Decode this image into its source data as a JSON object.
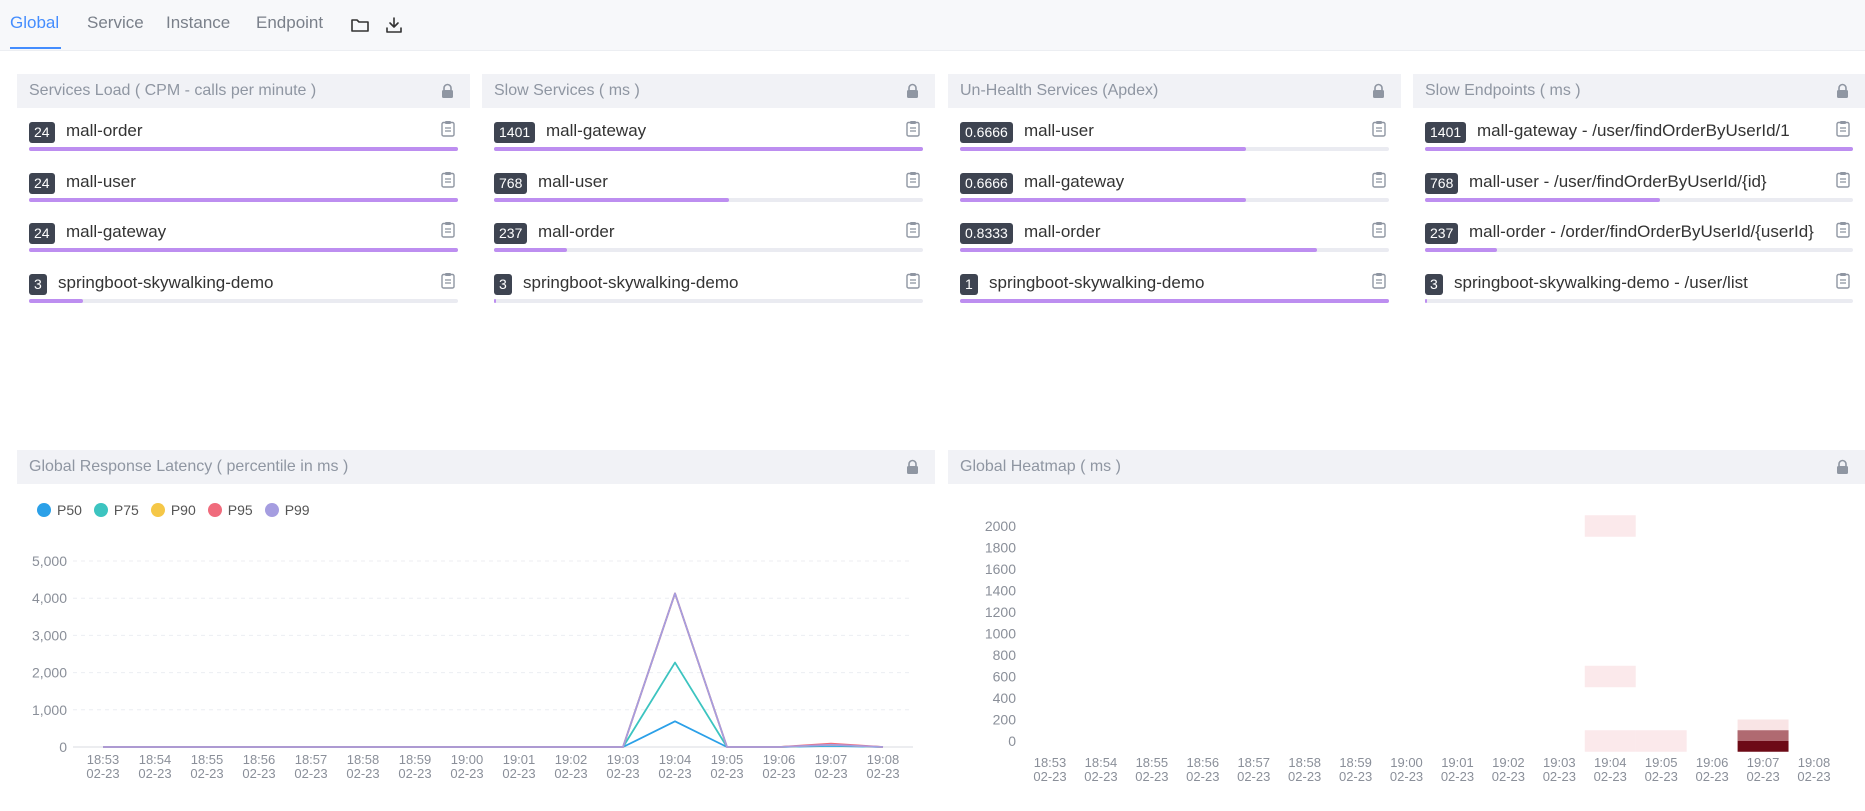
{
  "tabs": [
    {
      "label": "Global",
      "active": true
    },
    {
      "label": "Service",
      "active": false
    },
    {
      "label": "Instance",
      "active": false
    },
    {
      "label": "Endpoint",
      "active": false
    }
  ],
  "toolbar": {
    "import_icon": "folder-icon",
    "export_icon": "download-icon"
  },
  "panels": {
    "services_load": {
      "title": "Services Load ( CPM - calls per minute )",
      "rows": [
        {
          "value": "24",
          "name": "mall-order",
          "pct": 1.0
        },
        {
          "value": "24",
          "name": "mall-user",
          "pct": 1.0
        },
        {
          "value": "24",
          "name": "mall-gateway",
          "pct": 1.0
        },
        {
          "value": "3",
          "name": "springboot-skywalking-demo",
          "pct": 0.125
        }
      ]
    },
    "slow_services": {
      "title": "Slow Services ( ms )",
      "rows": [
        {
          "value": "1401",
          "name": "mall-gateway",
          "pct": 1.0
        },
        {
          "value": "768",
          "name": "mall-user",
          "pct": 0.548
        },
        {
          "value": "237",
          "name": "mall-order",
          "pct": 0.169
        },
        {
          "value": "3",
          "name": "springboot-skywalking-demo",
          "pct": 0.002
        }
      ]
    },
    "unhealth_services": {
      "title": "Un-Health Services (Apdex)",
      "rows": [
        {
          "value": "0.6666",
          "name": "mall-user",
          "pct": 0.6666
        },
        {
          "value": "0.6666",
          "name": "mall-gateway",
          "pct": 0.6666
        },
        {
          "value": "0.8333",
          "name": "mall-order",
          "pct": 0.8333
        },
        {
          "value": "1",
          "name": "springboot-skywalking-demo",
          "pct": 1.0
        }
      ]
    },
    "slow_endpoints": {
      "title": "Slow Endpoints ( ms )",
      "rows": [
        {
          "value": "1401",
          "name": "mall-gateway - /user/findOrderByUserId/1",
          "pct": 1.0
        },
        {
          "value": "768",
          "name": "mall-user - /user/findOrderByUserId/{id}",
          "pct": 0.548
        },
        {
          "value": "237",
          "name": "mall-order - /order/findOrderByUserId/{userId}",
          "pct": 0.169
        },
        {
          "value": "3",
          "name": "springboot-skywalking-demo - /user/list",
          "pct": 0.002
        }
      ]
    },
    "latency": {
      "title": "Global Response Latency ( percentile in ms )"
    },
    "heatmap": {
      "title": "Global Heatmap ( ms )"
    }
  },
  "colors": {
    "accent": "#448dfe",
    "bar": "#bd8ef0",
    "badge": "#3e4451"
  },
  "chart_data": [
    {
      "type": "line",
      "title": "Global Response Latency ( percentile in ms )",
      "categories": [
        "18:53\n02-23",
        "18:54\n02-23",
        "18:55\n02-23",
        "18:56\n02-23",
        "18:57\n02-23",
        "18:58\n02-23",
        "18:59\n02-23",
        "19:00\n02-23",
        "19:01\n02-23",
        "19:02\n02-23",
        "19:03\n02-23",
        "19:04\n02-23",
        "19:05\n02-23",
        "19:06\n02-23",
        "19:07\n02-23",
        "19:08\n02-23"
      ],
      "ylim": [
        0,
        5000
      ],
      "yticks": [
        "0",
        "1,000",
        "2,000",
        "3,000",
        "4,000",
        "5,000"
      ],
      "grid": true,
      "legend_position": "top-left",
      "series": [
        {
          "name": "P50",
          "color": "#2ba0e8",
          "values": [
            0,
            0,
            0,
            0,
            0,
            0,
            0,
            0,
            0,
            0,
            0,
            690,
            0,
            0,
            30,
            0
          ]
        },
        {
          "name": "P75",
          "color": "#3cc4c0",
          "values": [
            0,
            0,
            0,
            0,
            0,
            0,
            0,
            0,
            0,
            0,
            0,
            2270,
            0,
            0,
            50,
            0
          ]
        },
        {
          "name": "P90",
          "color": "#f5c747",
          "values": [
            0,
            0,
            0,
            0,
            0,
            0,
            0,
            0,
            0,
            0,
            0,
            4130,
            0,
            0,
            60,
            0
          ]
        },
        {
          "name": "P95",
          "color": "#f06b7c",
          "values": [
            0,
            0,
            0,
            0,
            0,
            0,
            0,
            0,
            0,
            0,
            0,
            4130,
            0,
            0,
            90,
            0
          ]
        },
        {
          "name": "P99",
          "color": "#a59de0",
          "values": [
            0,
            0,
            0,
            0,
            0,
            0,
            0,
            0,
            0,
            0,
            0,
            4130,
            0,
            0,
            60,
            0
          ]
        }
      ]
    },
    {
      "type": "heatmap",
      "title": "Global Heatmap ( ms )",
      "categories": [
        "18:53\n02-23",
        "18:54\n02-23",
        "18:55\n02-23",
        "18:56\n02-23",
        "18:57\n02-23",
        "18:58\n02-23",
        "18:59\n02-23",
        "19:00\n02-23",
        "19:01\n02-23",
        "19:02\n02-23",
        "19:03\n02-23",
        "19:04\n02-23",
        "19:05\n02-23",
        "19:06\n02-23",
        "19:07\n02-23",
        "19:08\n02-23"
      ],
      "ylim": [
        0,
        2000
      ],
      "yticks": [
        "0",
        "200",
        "400",
        "600",
        "800",
        "1000",
        "1200",
        "1400",
        "1600",
        "1800",
        "2000"
      ],
      "cells": [
        {
          "t": 11,
          "bucket": 0,
          "intensity": 0.15
        },
        {
          "t": 12,
          "bucket": 0,
          "intensity": 0.15
        },
        {
          "t": 11,
          "bucket": 600,
          "intensity": 0.15
        },
        {
          "t": 11,
          "bucket": 2000,
          "intensity": 0.15
        },
        {
          "t": 14,
          "bucket": 0,
          "intensity": 1.0
        },
        {
          "t": 14,
          "bucket": 100,
          "intensity": 0.25
        }
      ]
    }
  ]
}
